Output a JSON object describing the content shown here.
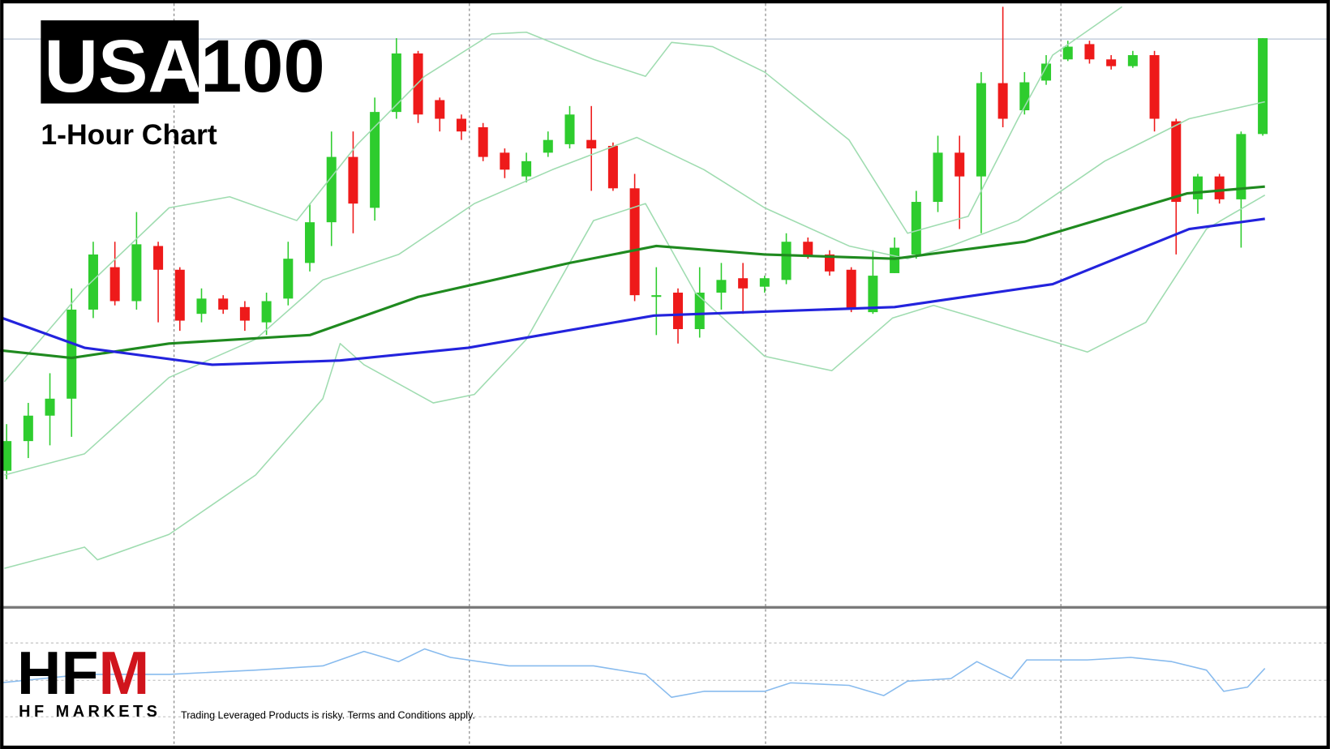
{
  "branding": {
    "title_box": "USA",
    "title_rest": "100",
    "subtitle": "1-Hour Chart",
    "logo_black": "HF",
    "logo_red": "M",
    "company": "HF MARKETS",
    "disclaimer": "Trading Leveraged Products is risky. Terms and Conditions apply."
  },
  "chart_data": [
    {
      "type": "candlestick",
      "xlim": [
        -0.3,
        61.1
      ],
      "ylim": [
        0,
        715
      ],
      "reference_line": 669,
      "up_color": "#2ecc2e",
      "down_color": "#ee1a1a",
      "open": [
        160,
        195,
        225,
        245,
        350,
        400,
        360,
        425,
        397,
        345,
        363,
        353,
        335,
        363,
        405,
        453,
        530,
        470,
        583,
        652,
        597,
        575,
        565,
        535,
        507,
        535,
        545,
        550,
        543,
        493,
        365,
        370,
        327,
        370,
        387,
        377,
        385,
        430,
        415,
        397,
        347,
        393,
        415,
        477,
        535,
        507,
        617,
        585,
        620,
        645,
        663,
        645,
        637,
        650,
        572,
        480,
        507,
        480,
        557
      ],
      "high": [
        215,
        240,
        275,
        375,
        430,
        430,
        465,
        430,
        400,
        375,
        367,
        360,
        370,
        430,
        475,
        560,
        560,
        600,
        670,
        655,
        600,
        580,
        570,
        540,
        535,
        560,
        590,
        590,
        547,
        510,
        400,
        375,
        400,
        405,
        405,
        390,
        440,
        435,
        420,
        400,
        420,
        435,
        490,
        555,
        555,
        630,
        707,
        630,
        650,
        667,
        667,
        650,
        655,
        655,
        575,
        510,
        510,
        560,
        670
      ],
      "low": [
        150,
        175,
        190,
        200,
        340,
        355,
        350,
        335,
        325,
        335,
        345,
        325,
        320,
        355,
        395,
        425,
        440,
        455,
        575,
        570,
        560,
        550,
        525,
        505,
        500,
        530,
        540,
        490,
        490,
        360,
        320,
        310,
        317,
        350,
        345,
        370,
        380,
        410,
        390,
        347,
        345,
        393,
        410,
        465,
        445,
        440,
        565,
        580,
        615,
        643,
        640,
        633,
        635,
        560,
        415,
        463,
        475,
        423,
        555
      ],
      "close": [
        195,
        225,
        245,
        350,
        415,
        360,
        427,
        397,
        337,
        363,
        350,
        337,
        360,
        410,
        453,
        530,
        475,
        583,
        652,
        580,
        575,
        560,
        530,
        515,
        525,
        550,
        580,
        540,
        493,
        367,
        367,
        327,
        370,
        385,
        375,
        387,
        430,
        413,
        395,
        350,
        390,
        423,
        477,
        535,
        507,
        617,
        575,
        618,
        640,
        660,
        645,
        637,
        650,
        575,
        477,
        507,
        480,
        557,
        670
      ],
      "series": [
        {
          "color": "#9fdcb0",
          "width": 1.5,
          "x": [
            -0.1,
            3.6,
            7.5,
            10.3,
            13.4,
            16.2,
            19.3,
            22.4,
            24,
            27.1,
            29.5,
            30.7,
            32.6,
            35,
            38.9,
            41.6,
            44.4,
            46.7,
            48.3,
            51.5
          ],
          "values": [
            265,
            375,
            470,
            483,
            455,
            545,
            625,
            675,
            677,
            645,
            625,
            665,
            660,
            630,
            550,
            440,
            460,
            575,
            650,
            707
          ]
        },
        {
          "color": "#9fdcb0",
          "width": 1.5,
          "x": [
            -0.1,
            3.6,
            7.5,
            11.5,
            14.6,
            18.1,
            21.6,
            25.2,
            29.1,
            32.2,
            35,
            38.9,
            41.6,
            43.6,
            46.7,
            50.7,
            54.6,
            58.1
          ],
          "values": [
            155,
            180,
            270,
            315,
            385,
            415,
            475,
            515,
            553,
            515,
            470,
            425,
            410,
            425,
            455,
            525,
            575,
            595
          ]
        },
        {
          "color": "#9fdcb0",
          "width": 1.5,
          "x": [
            -0.1,
            3.6,
            4.2,
            7.5,
            11.5,
            14.6,
            15.4,
            16.5,
            19.7,
            21.6,
            24,
            27.1,
            29.5,
            31.8,
            35,
            38.1,
            40.9,
            42.8,
            44.8,
            46.7,
            49.9,
            52.6,
            55.4,
            58.1
          ],
          "values": [
            45,
            70,
            55,
            85,
            155,
            245,
            310,
            285,
            240,
            250,
            315,
            455,
            475,
            370,
            295,
            278,
            340,
            355,
            340,
            325,
            300,
            335,
            445,
            485
          ]
        },
        {
          "color": "#1f8a1f",
          "width": 3,
          "x": [
            -0.3,
            3,
            7.5,
            14,
            19,
            26,
            30,
            35,
            41,
            47,
            54.5,
            58.1
          ],
          "values": [
            302,
            293,
            310,
            320,
            365,
            405,
            425,
            415,
            410,
            430,
            487,
            495
          ]
        },
        {
          "color": "#2323dd",
          "width": 3,
          "x": [
            -0.2,
            3.6,
            9.5,
            15.4,
            21.3,
            29.9,
            41,
            48.3,
            54.6,
            58.1
          ],
          "values": [
            340,
            305,
            285,
            290,
            305,
            343,
            353,
            380,
            445,
            457
          ]
        }
      ]
    },
    {
      "type": "line",
      "xlim": [
        -0.3,
        61.1
      ],
      "ylim": [
        0,
        163
      ],
      "hlines": [
        122,
        78,
        35
      ],
      "series": [
        {
          "color": "#88bbee",
          "width": 1.5,
          "x": [
            -0.3,
            3.6,
            7.5,
            11.5,
            14.6,
            16.5,
            18.1,
            19.3,
            20.5,
            23.2,
            27.1,
            29.5,
            30.7,
            32.2,
            35,
            36.2,
            38.9,
            40.5,
            41.6,
            43.6,
            44.8,
            46.4,
            47.1,
            49.9,
            51.9,
            53.8,
            55.4,
            56.2,
            57.3,
            58.1
          ],
          "values": [
            75,
            85,
            85,
            90,
            95,
            112,
            100,
            115,
            105,
            95,
            95,
            85,
            58,
            65,
            65,
            75,
            72,
            60,
            77,
            80,
            100,
            80,
            102,
            102,
            105,
            100,
            90,
            65,
            70,
            92
          ]
        }
      ]
    }
  ]
}
